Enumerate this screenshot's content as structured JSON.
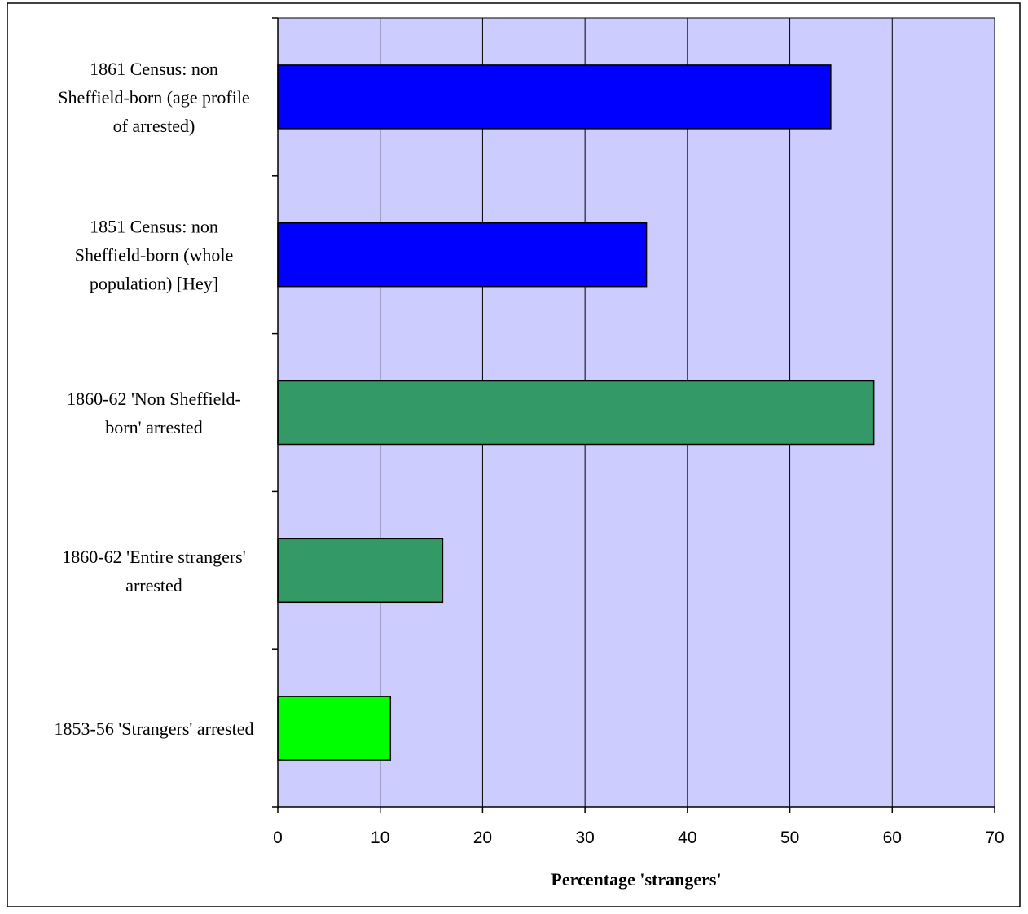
{
  "chart_data": {
    "type": "bar",
    "orientation": "horizontal",
    "categories": [
      "1861 Census: non Sheffield-born (age profile of arrested)",
      "1851 Census: non Sheffield-born (whole population) [Hey]",
      "1860-62 'Non Sheffield-born' arrested",
      "1860-62 'Entire strangers' arrested",
      "1853-56 'Strangers' arrested"
    ],
    "category_label_lines": [
      [
        "1861 Census: non",
        "Sheffield-born (age profile",
        "of arrested)"
      ],
      [
        "1851 Census: non",
        "Sheffield-born (whole",
        "population) [Hey]"
      ],
      [
        "1860-62 'Non Sheffield-",
        "born' arrested"
      ],
      [
        "1860-62 'Entire strangers'",
        "arrested"
      ],
      [
        "1853-56 'Strangers' arrested"
      ]
    ],
    "values": [
      54,
      36,
      58.2,
      16.1,
      11
    ],
    "bar_colors": [
      "#0000ff",
      "#0000ff",
      "#339966",
      "#339966",
      "#00ff00"
    ],
    "xlabel": "Percentage 'strangers'",
    "ylabel": "",
    "title": "",
    "xlim": [
      0,
      70
    ],
    "xticks": [
      0,
      10,
      20,
      30,
      40,
      50,
      60,
      70
    ],
    "grid": true,
    "legend": "none",
    "plot_background": "#ccccff"
  }
}
